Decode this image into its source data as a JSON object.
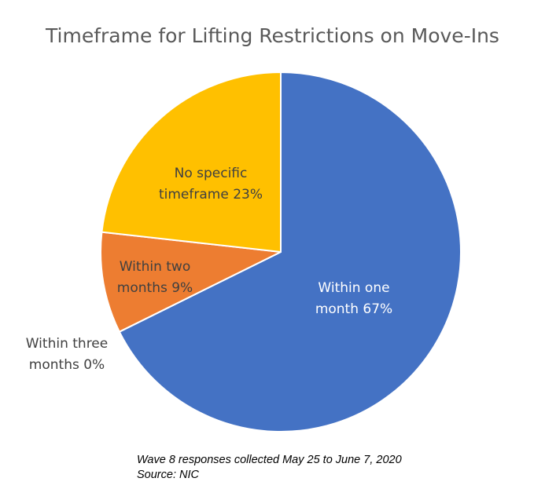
{
  "chart_data": {
    "type": "pie",
    "title": "Timeframe for Lifting Restrictions on Move-Ins",
    "slices": [
      {
        "label_lines": [
          "Within one",
          "month 67%"
        ],
        "value": 67,
        "color": "#4472C4",
        "label_color": "#ffffff"
      },
      {
        "label_lines": [
          "Within three",
          "months 0%"
        ],
        "value": 0,
        "color": "#A5A5A5",
        "label_color": "#404040"
      },
      {
        "label_lines": [
          "Within two",
          "months 9%"
        ],
        "value": 9,
        "color": "#ED7D31",
        "label_color": "#404040"
      },
      {
        "label_lines": [
          "No specific",
          "timeframe 23%"
        ],
        "value": 23,
        "color": "#FFC000",
        "label_color": "#404040"
      }
    ],
    "start": "12 o'clock",
    "direction": "clockwise",
    "legend": "none"
  },
  "footnote": {
    "line1": "Wave 8 responses collected May 25 to June 7, 2020",
    "line2": "Source: NIC"
  }
}
